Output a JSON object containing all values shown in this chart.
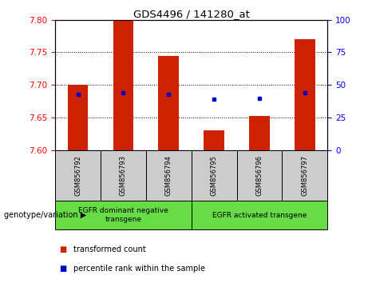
{
  "title": "GDS4496 / 141280_at",
  "samples": [
    "GSM856792",
    "GSM856793",
    "GSM856794",
    "GSM856795",
    "GSM856796",
    "GSM856797"
  ],
  "bar_bottoms": [
    7.6,
    7.6,
    7.6,
    7.6,
    7.6,
    7.6
  ],
  "bar_tops": [
    7.7,
    7.8,
    7.745,
    7.63,
    7.652,
    7.77
  ],
  "percentile_values": [
    7.686,
    7.688,
    7.686,
    7.678,
    7.679,
    7.688
  ],
  "ylim": [
    7.6,
    7.8
  ],
  "yticks_left": [
    7.6,
    7.65,
    7.7,
    7.75,
    7.8
  ],
  "yticks_right": [
    0,
    25,
    50,
    75,
    100
  ],
  "bar_color": "#cc2200",
  "dot_color": "#0000cc",
  "group1_label": "EGFR dominant negative\ntransgene",
  "group2_label": "EGFR activated transgene",
  "group_bg_color": "#66dd44",
  "sample_bg_color": "#cccccc",
  "legend_red_label": "transformed count",
  "legend_blue_label": "percentile rank within the sample",
  "left_label": "genotype/variation"
}
